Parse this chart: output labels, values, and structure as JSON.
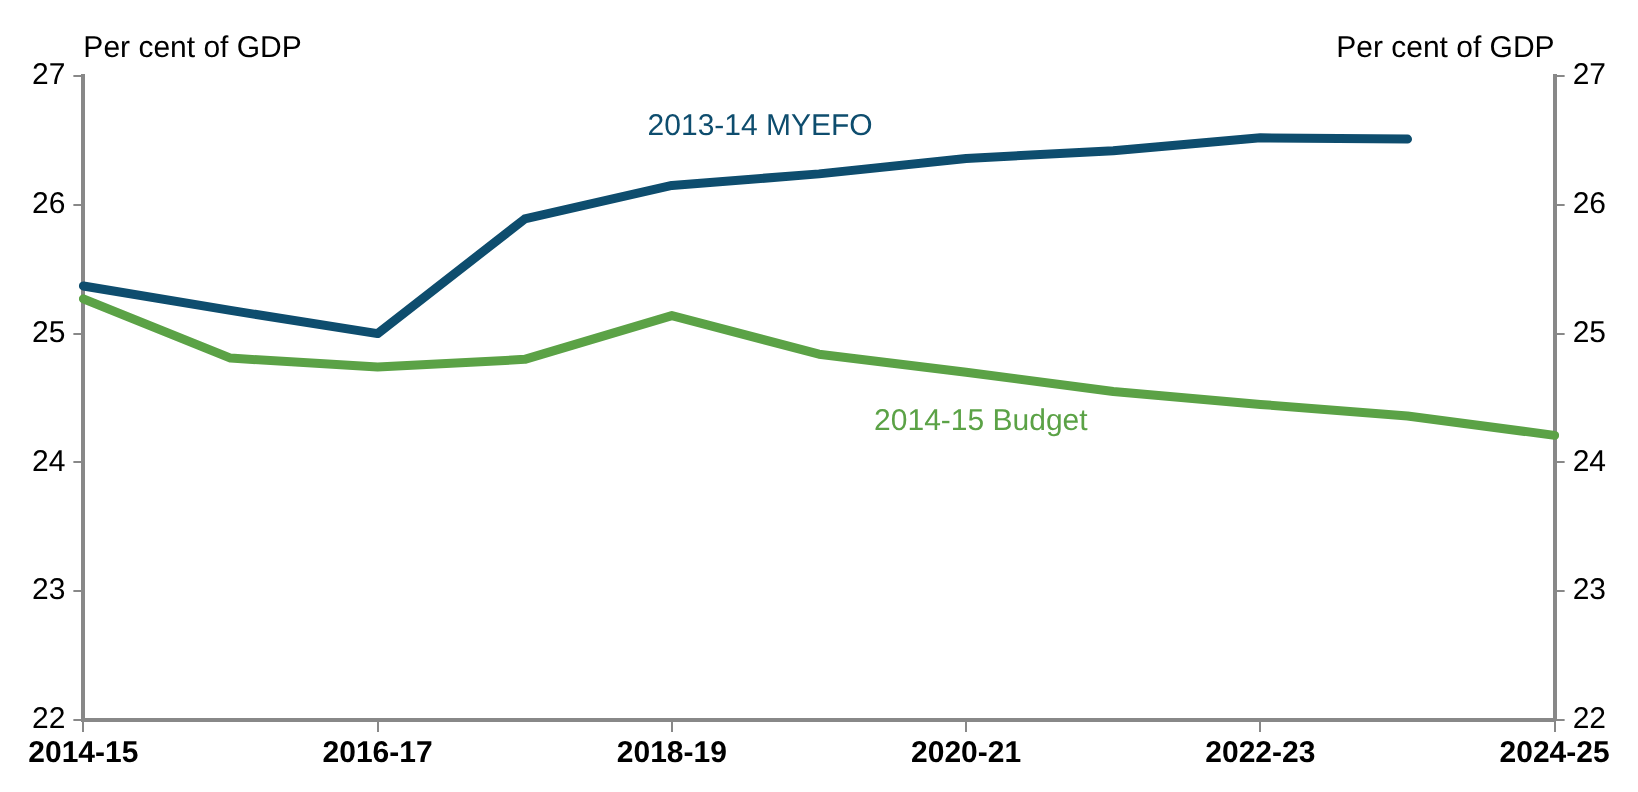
{
  "chart_data": {
    "type": "line",
    "ylabel": "Per cent of GDP",
    "y2label": "Per cent of GDP",
    "categories": [
      "2014-15",
      null,
      "2016-17",
      null,
      "2018-19",
      null,
      "2020-21",
      null,
      "2022-23",
      null,
      "2024-25"
    ],
    "series": [
      {
        "name": "2013-14 MYEFO",
        "color": "#0e4d6e",
        "values": [
          25.37,
          25.18,
          25.0,
          25.89,
          26.15,
          26.24,
          26.36,
          26.42,
          26.52,
          26.51,
          null
        ]
      },
      {
        "name": "2014-15 Budget",
        "color": "#5ba246",
        "values": [
          25.27,
          24.81,
          24.74,
          24.8,
          25.14,
          24.84,
          24.7,
          24.55,
          24.45,
          24.36,
          24.21
        ]
      }
    ],
    "ylim": [
      22,
      27
    ],
    "yticks": [
      22,
      23,
      24,
      25,
      26,
      27
    ],
    "y2lim": [
      22,
      27
    ],
    "y2ticks": [
      22,
      23,
      24,
      25,
      26,
      27
    ],
    "grid": false,
    "legend": false,
    "marker": "none",
    "line_style": "solid"
  }
}
